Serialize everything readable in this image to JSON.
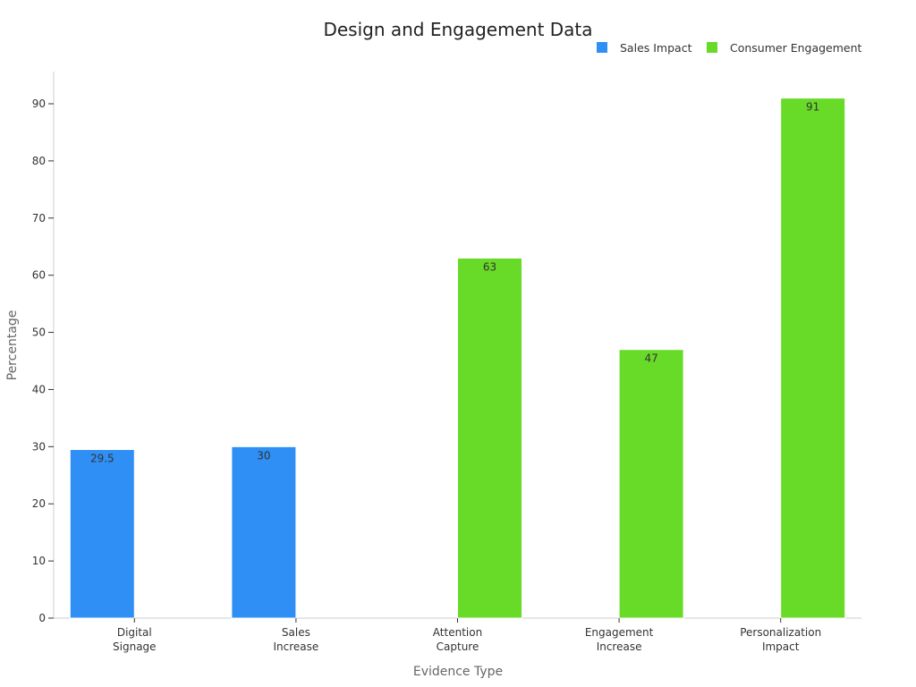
{
  "chart_data": {
    "type": "bar",
    "title": "Design and Engagement Data",
    "xlabel": "Evidence Type",
    "ylabel": "Percentage",
    "ylim": [
      0,
      95
    ],
    "yticks": [
      0,
      10,
      20,
      30,
      40,
      50,
      60,
      70,
      80,
      90
    ],
    "grid": false,
    "legend_position": "top-right",
    "categories": [
      [
        "Digital",
        "Signage"
      ],
      [
        "Sales",
        "Increase"
      ],
      [
        "Attention",
        "Capture"
      ],
      [
        "Engagement",
        "Increase"
      ],
      [
        "Personalization",
        "Impact"
      ]
    ],
    "series": [
      {
        "name": "Sales Impact",
        "color": "#2f8ff5",
        "values": [
          29.5,
          30,
          null,
          null,
          null
        ]
      },
      {
        "name": "Consumer Engagement",
        "color": "#68da28",
        "values": [
          null,
          null,
          63,
          47,
          91
        ]
      }
    ]
  }
}
